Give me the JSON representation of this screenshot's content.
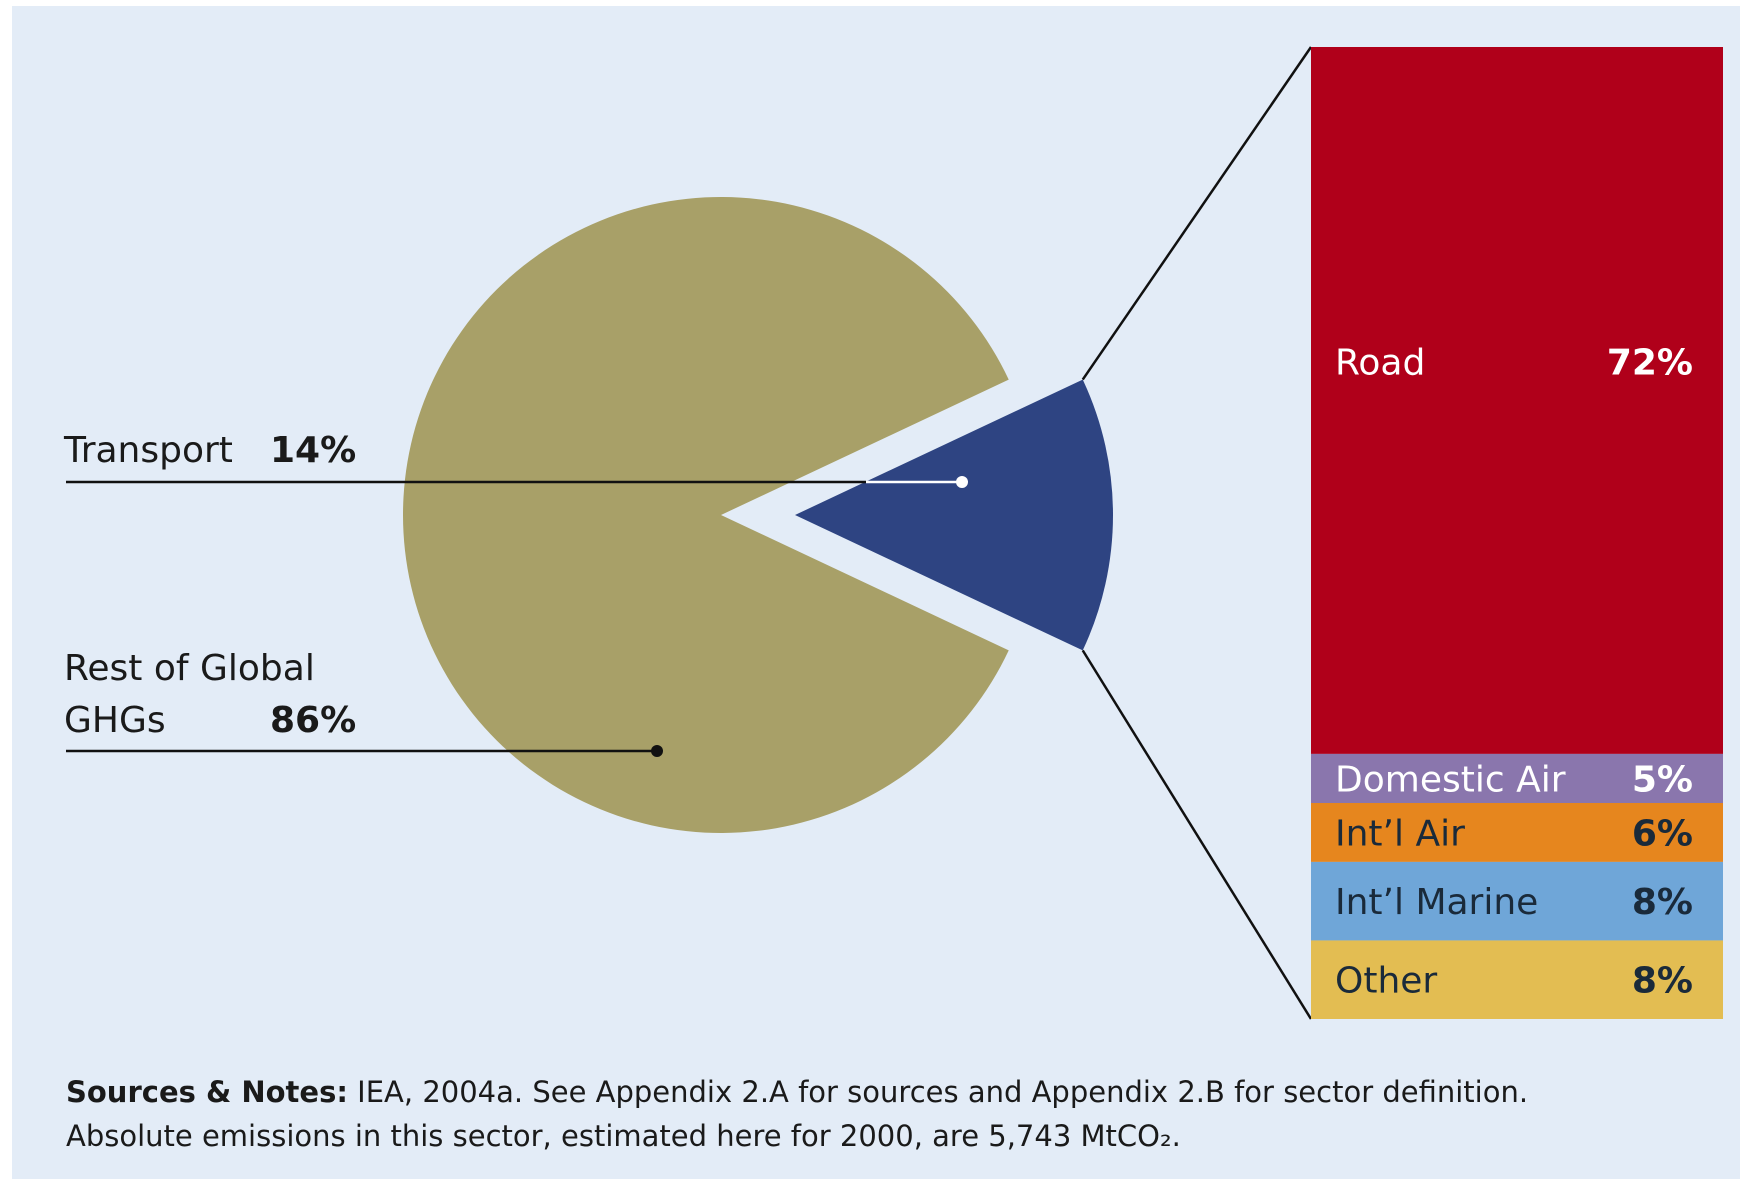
{
  "chart_data": [
    {
      "type": "pie",
      "categories": [
        "Transport",
        "Rest of Global GHGs"
      ],
      "values": [
        14,
        86
      ],
      "value_labels": [
        "14%",
        "86%"
      ],
      "colors": [
        "#2e4482",
        "#a8a068"
      ]
    },
    {
      "type": "stacked_bar",
      "categories": [
        "Road",
        "Domestic Air",
        "Int’l Air",
        "Int’l Marine",
        "Other"
      ],
      "values": [
        72,
        5,
        6,
        8,
        8
      ],
      "value_labels": [
        "72%",
        "5%",
        "6%",
        "8%",
        "8%"
      ],
      "colors": [
        "#b0001a",
        "#8a76ad",
        "#e6861e",
        "#6fa6d8",
        "#e3bd52"
      ],
      "label_colors": [
        "#ffffff",
        "#ffffff",
        "#1a2a3a",
        "#1a2a3a",
        "#1a2a3a"
      ]
    }
  ],
  "notes": {
    "label": "Sources & Notes:",
    "line1": "IEA, 2004a. See Appendix 2.A for sources and Appendix 2.B for sector definition.",
    "line2": "Absolute emissions in this sector, estimated here for 2000, are 5,743 MtCO₂."
  }
}
